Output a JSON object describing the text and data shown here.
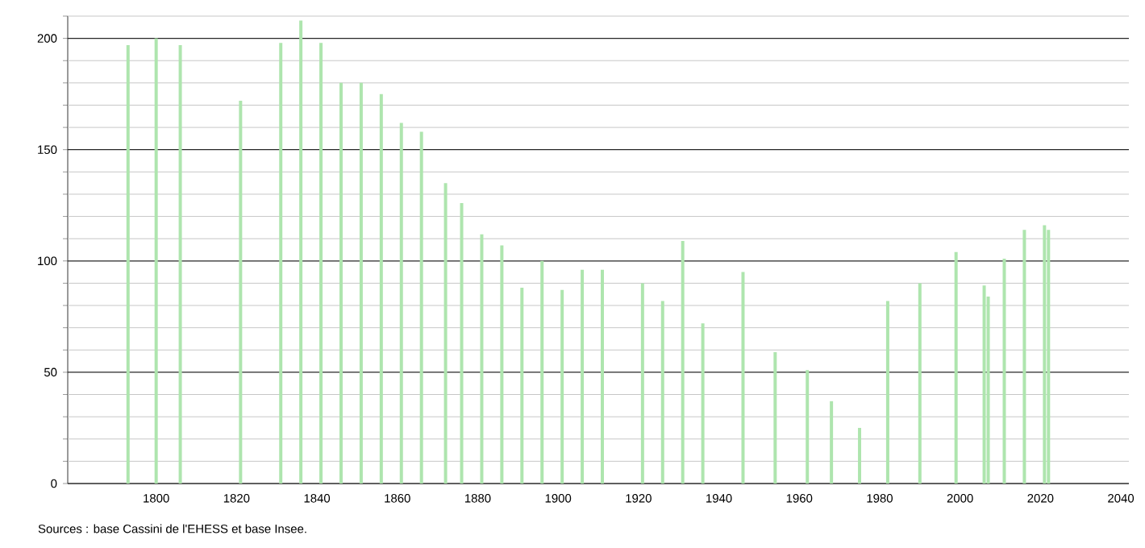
{
  "chart_data": {
    "type": "bar",
    "x": [
      1793,
      1800,
      1806,
      1821,
      1831,
      1836,
      1841,
      1846,
      1851,
      1856,
      1861,
      1866,
      1872,
      1876,
      1881,
      1886,
      1891,
      1896,
      1901,
      1906,
      1911,
      1921,
      1926,
      1931,
      1936,
      1946,
      1954,
      1962,
      1968,
      1975,
      1982,
      1990,
      1999,
      2006,
      2007,
      2011,
      2016,
      2021,
      2022
    ],
    "values": [
      197,
      200,
      197,
      172,
      198,
      208,
      198,
      180,
      180,
      175,
      162,
      158,
      135,
      126,
      112,
      107,
      88,
      100,
      87,
      96,
      96,
      90,
      82,
      109,
      72,
      95,
      59,
      51,
      37,
      25,
      82,
      90,
      104,
      89,
      84,
      101,
      114,
      116,
      114
    ],
    "color": "#aee5ae",
    "xlim": [
      1778,
      2042
    ],
    "ylim": [
      0,
      210
    ],
    "xticks": [
      1800,
      1820,
      1840,
      1860,
      1880,
      1900,
      1920,
      1940,
      1960,
      1980,
      2000,
      2020,
      2040
    ],
    "yticks": [
      0,
      {
        "value": 10,
        "label": null
      },
      {
        "value": 20,
        "label": null
      },
      {
        "value": 30,
        "label": null
      },
      {
        "value": 40,
        "label": null
      },
      50,
      {
        "value": 60,
        "label": null
      },
      {
        "value": 70,
        "label": null
      },
      {
        "value": 80,
        "label": null
      },
      {
        "value": 90,
        "label": null
      },
      100,
      {
        "value": 110,
        "label": null
      },
      {
        "value": 120,
        "label": null
      },
      {
        "value": 130,
        "label": null
      },
      {
        "value": 140,
        "label": null
      },
      150,
      {
        "value": 160,
        "label": null
      },
      {
        "value": 170,
        "label": null
      },
      {
        "value": 180,
        "label": null
      },
      {
        "value": 190,
        "label": null
      },
      200,
      {
        "value": 210,
        "label": null
      }
    ],
    "grid": "y",
    "annotations": [
      "Sources : base Cassini de l'EHESS et base Insee."
    ]
  }
}
